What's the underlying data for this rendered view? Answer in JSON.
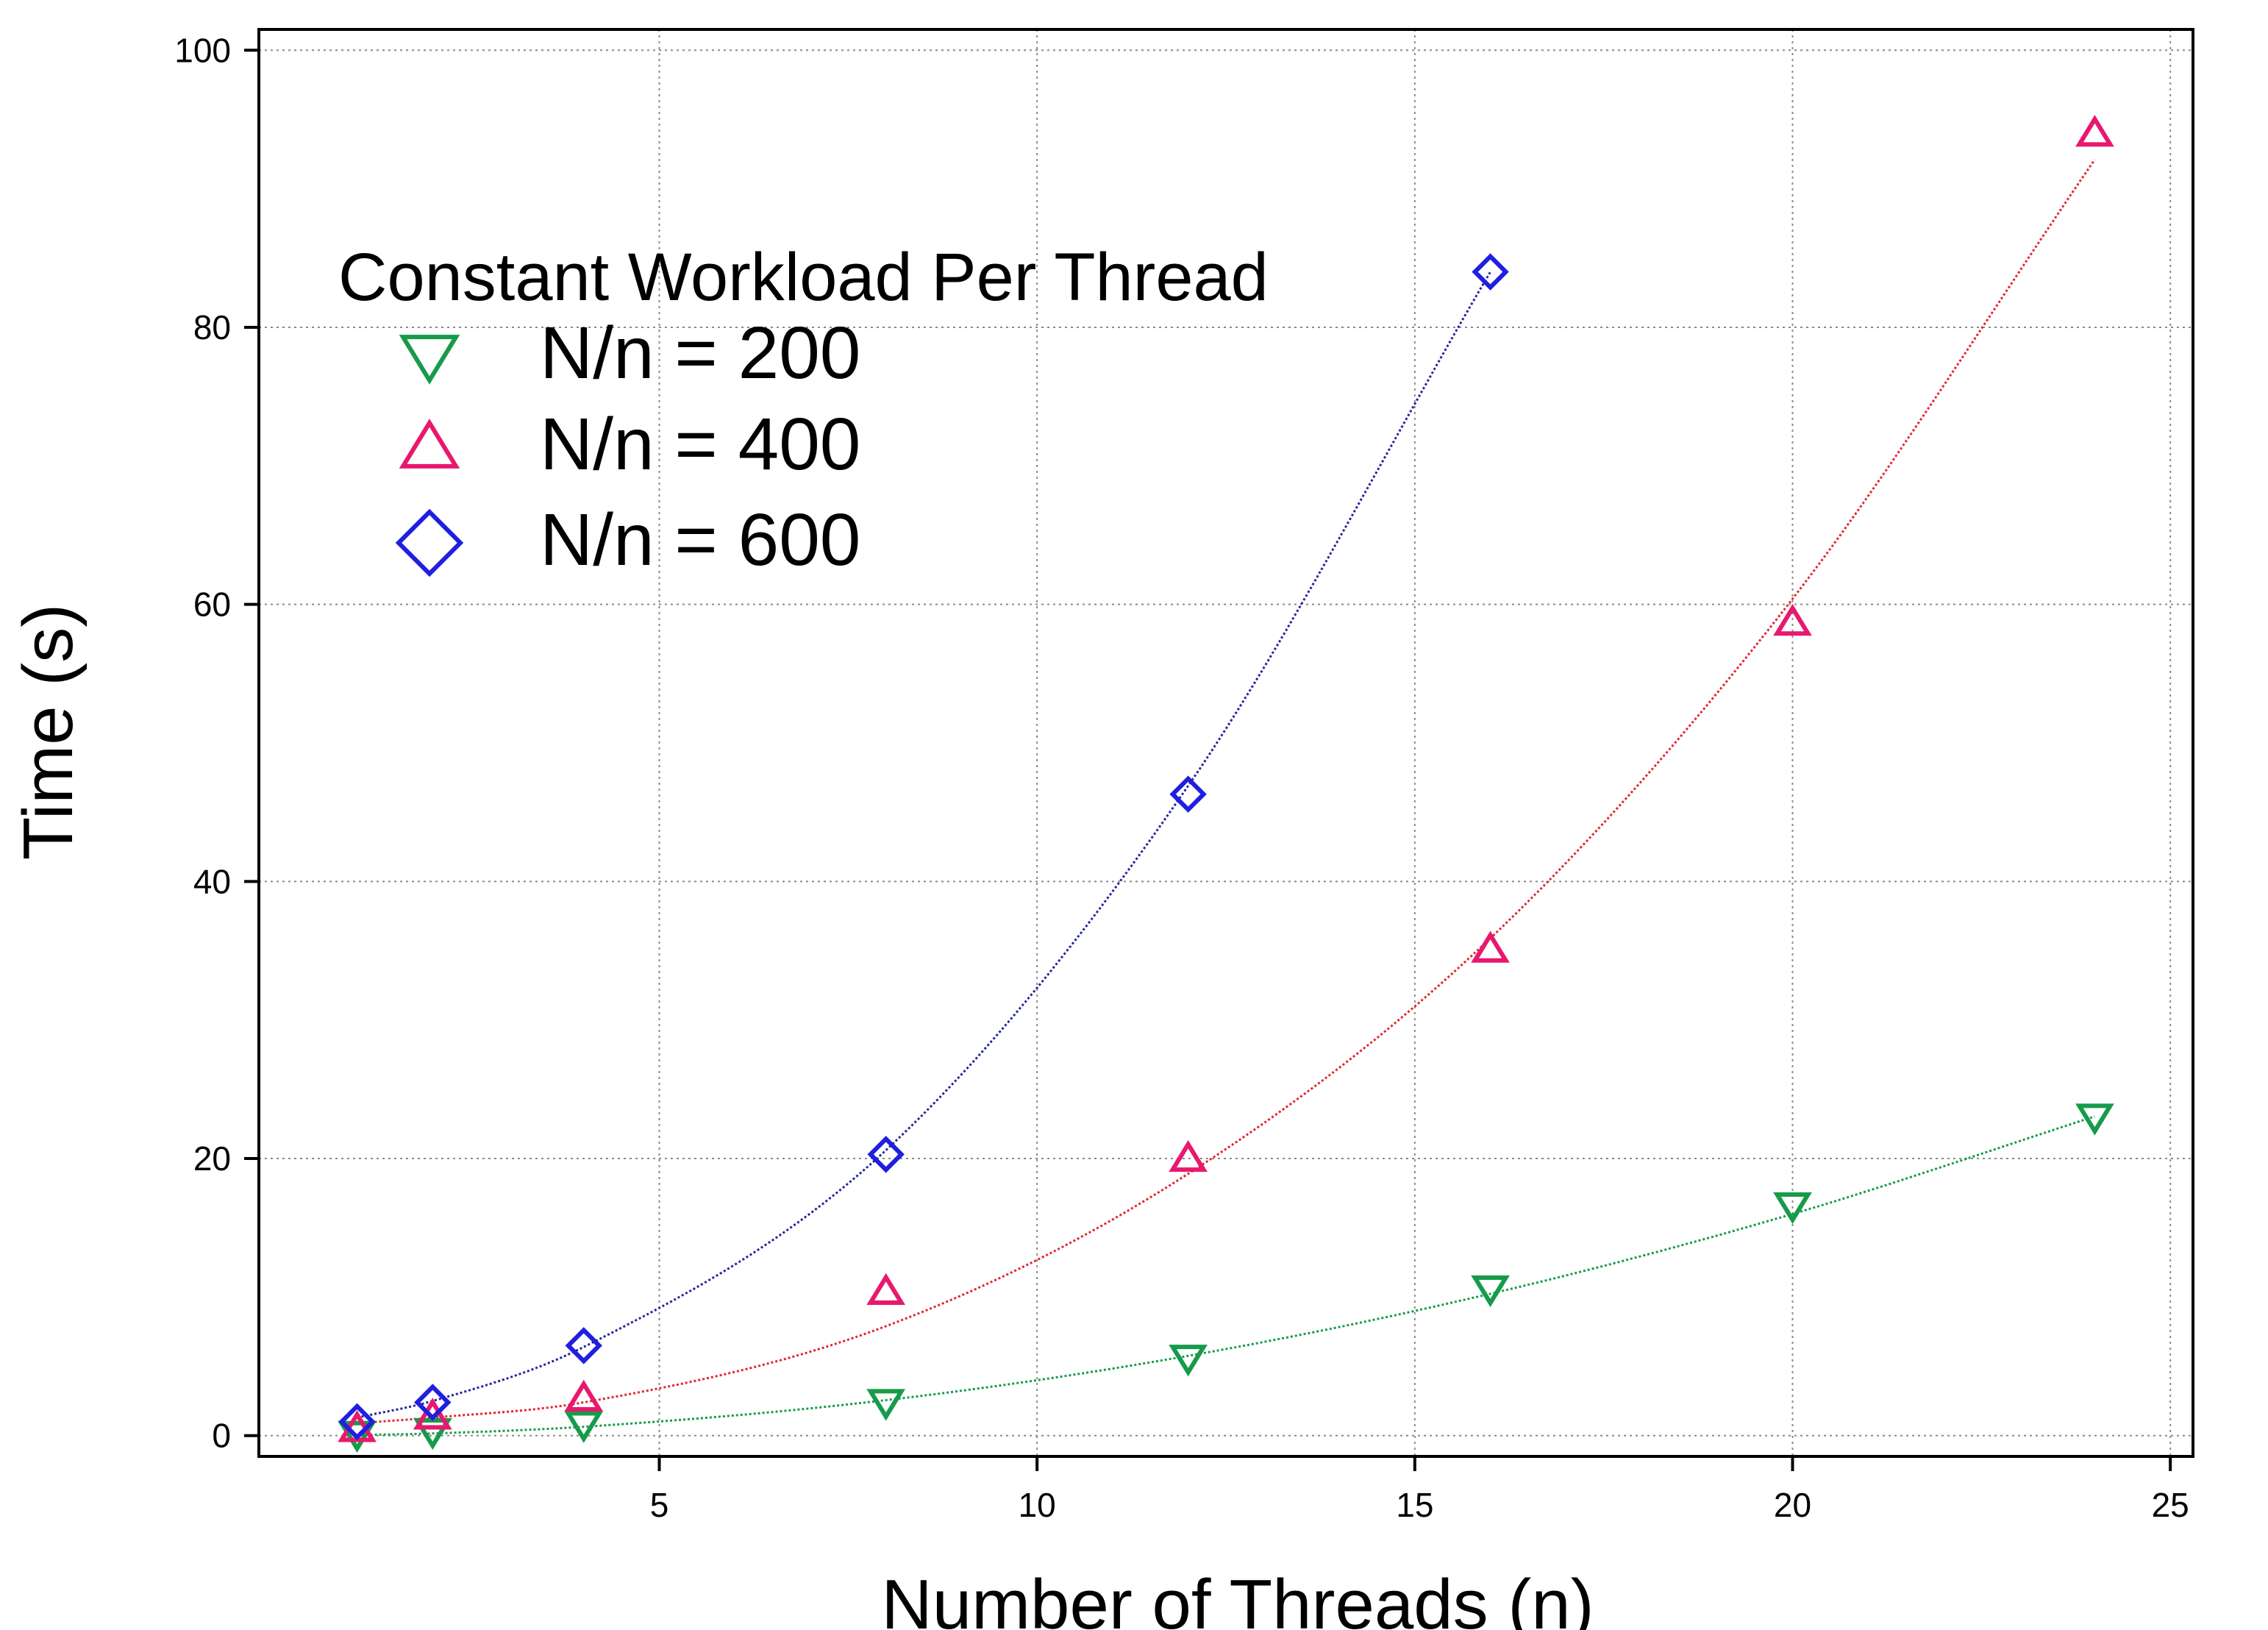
{
  "chart_data": {
    "type": "scatter",
    "title": "",
    "xlabel": "Number of Threads (n)",
    "ylabel": "Time (s)",
    "xlim": [
      -0.3,
      25.3
    ],
    "ylim": [
      -1.5,
      101.5
    ],
    "xticks": [
      5,
      10,
      15,
      20,
      25
    ],
    "yticks": [
      0,
      20,
      40,
      60,
      80,
      100
    ],
    "grid": true,
    "legend": {
      "title": "Constant Workload Per Thread",
      "placement": "top-left"
    },
    "series": [
      {
        "name": "N/n = 200",
        "marker": "triangle-down",
        "color": "#169b4a",
        "fit_color": "#169b4a",
        "x": [
          1,
          2,
          4,
          8,
          12,
          16,
          20,
          24
        ],
        "y": [
          0.1,
          0.3,
          0.8,
          2.4,
          5.6,
          10.6,
          16.6,
          23.0
        ],
        "fit_y": [
          0.04,
          0.16,
          0.64,
          2.56,
          5.76,
          10.24,
          16.0,
          23.04
        ]
      },
      {
        "name": "N/n = 400",
        "marker": "triangle-up",
        "color": "#e8186e",
        "fit_color": "#e3262e",
        "x": [
          1,
          2,
          4,
          8,
          12,
          16,
          20,
          24
        ],
        "y": [
          0.5,
          1.4,
          2.7,
          10.4,
          20.0,
          35.1,
          58.7,
          94.0
        ],
        "fit_y": [
          0.9,
          1.3,
          2.4,
          7.9,
          18.9,
          35.9,
          60.4,
          92.1
        ]
      },
      {
        "name": "N/n = 600",
        "marker": "diamond",
        "color": "#1f1fe0",
        "fit_color": "#24249e",
        "x": [
          1,
          2,
          4,
          8,
          12,
          16
        ],
        "y": [
          1.0,
          2.4,
          6.5,
          20.3,
          46.3,
          84.0
        ],
        "fit_y": [
          1.3,
          2.5,
          6.4,
          20.6,
          46.9,
          84.0
        ]
      }
    ]
  }
}
